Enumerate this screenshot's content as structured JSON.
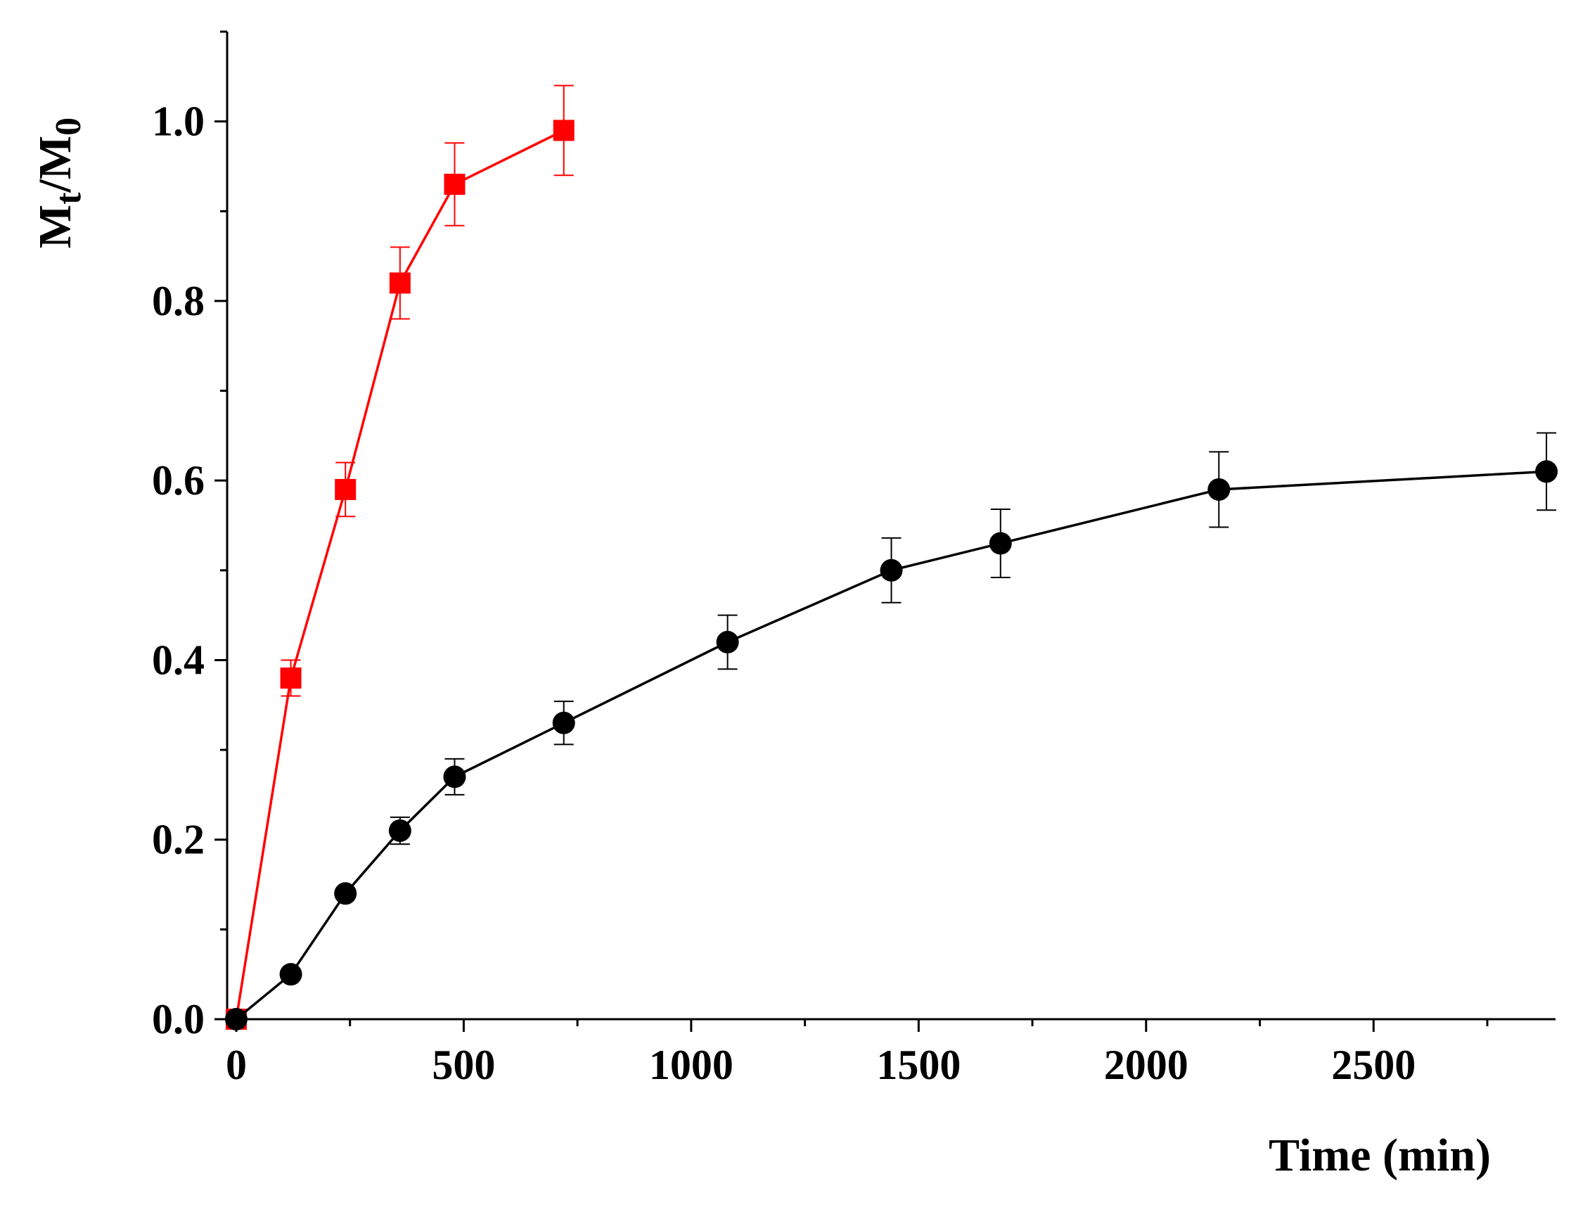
{
  "chart_data": {
    "type": "line",
    "title": "",
    "xlabel": "Time (min)",
    "ylabel": {
      "main1": "M",
      "sub1": "t",
      "sep": "/M",
      "sub2": "0"
    },
    "xlim": [
      -20,
      2900
    ],
    "ylim": [
      0,
      1.1
    ],
    "xticks": [
      0,
      500,
      1000,
      1500,
      2000,
      2500
    ],
    "xtick_labels": [
      "0",
      "500",
      "1000",
      "1500",
      "2000",
      "2500"
    ],
    "yticks": [
      0,
      0.2,
      0.4,
      0.6,
      0.8,
      1.0
    ],
    "ytick_labels": [
      "0.0",
      "0.2",
      "0.4",
      "0.6",
      "0.8",
      "1.0"
    ],
    "x_minor_step": 250,
    "y_minor_step": 0.1,
    "grid": false,
    "legend": "none",
    "series": [
      {
        "name": "series-red",
        "color": "#ff0000",
        "marker": "square",
        "x": [
          0,
          120,
          240,
          360,
          480,
          720
        ],
        "y": [
          0.0,
          0.38,
          0.59,
          0.82,
          0.93,
          0.99
        ],
        "error": [
          0,
          0.02,
          0.03,
          0.04,
          0.046,
          0.05
        ]
      },
      {
        "name": "series-black",
        "color": "#000000",
        "marker": "circle",
        "x": [
          0,
          120,
          240,
          360,
          480,
          720,
          1080,
          1440,
          1680,
          2160,
          2880
        ],
        "y": [
          0.0,
          0.05,
          0.14,
          0.21,
          0.27,
          0.33,
          0.42,
          0.5,
          0.53,
          0.59,
          0.61
        ],
        "error": [
          0,
          0,
          0,
          0.015,
          0.02,
          0.024,
          0.03,
          0.036,
          0.038,
          0.042,
          0.043
        ]
      }
    ]
  }
}
